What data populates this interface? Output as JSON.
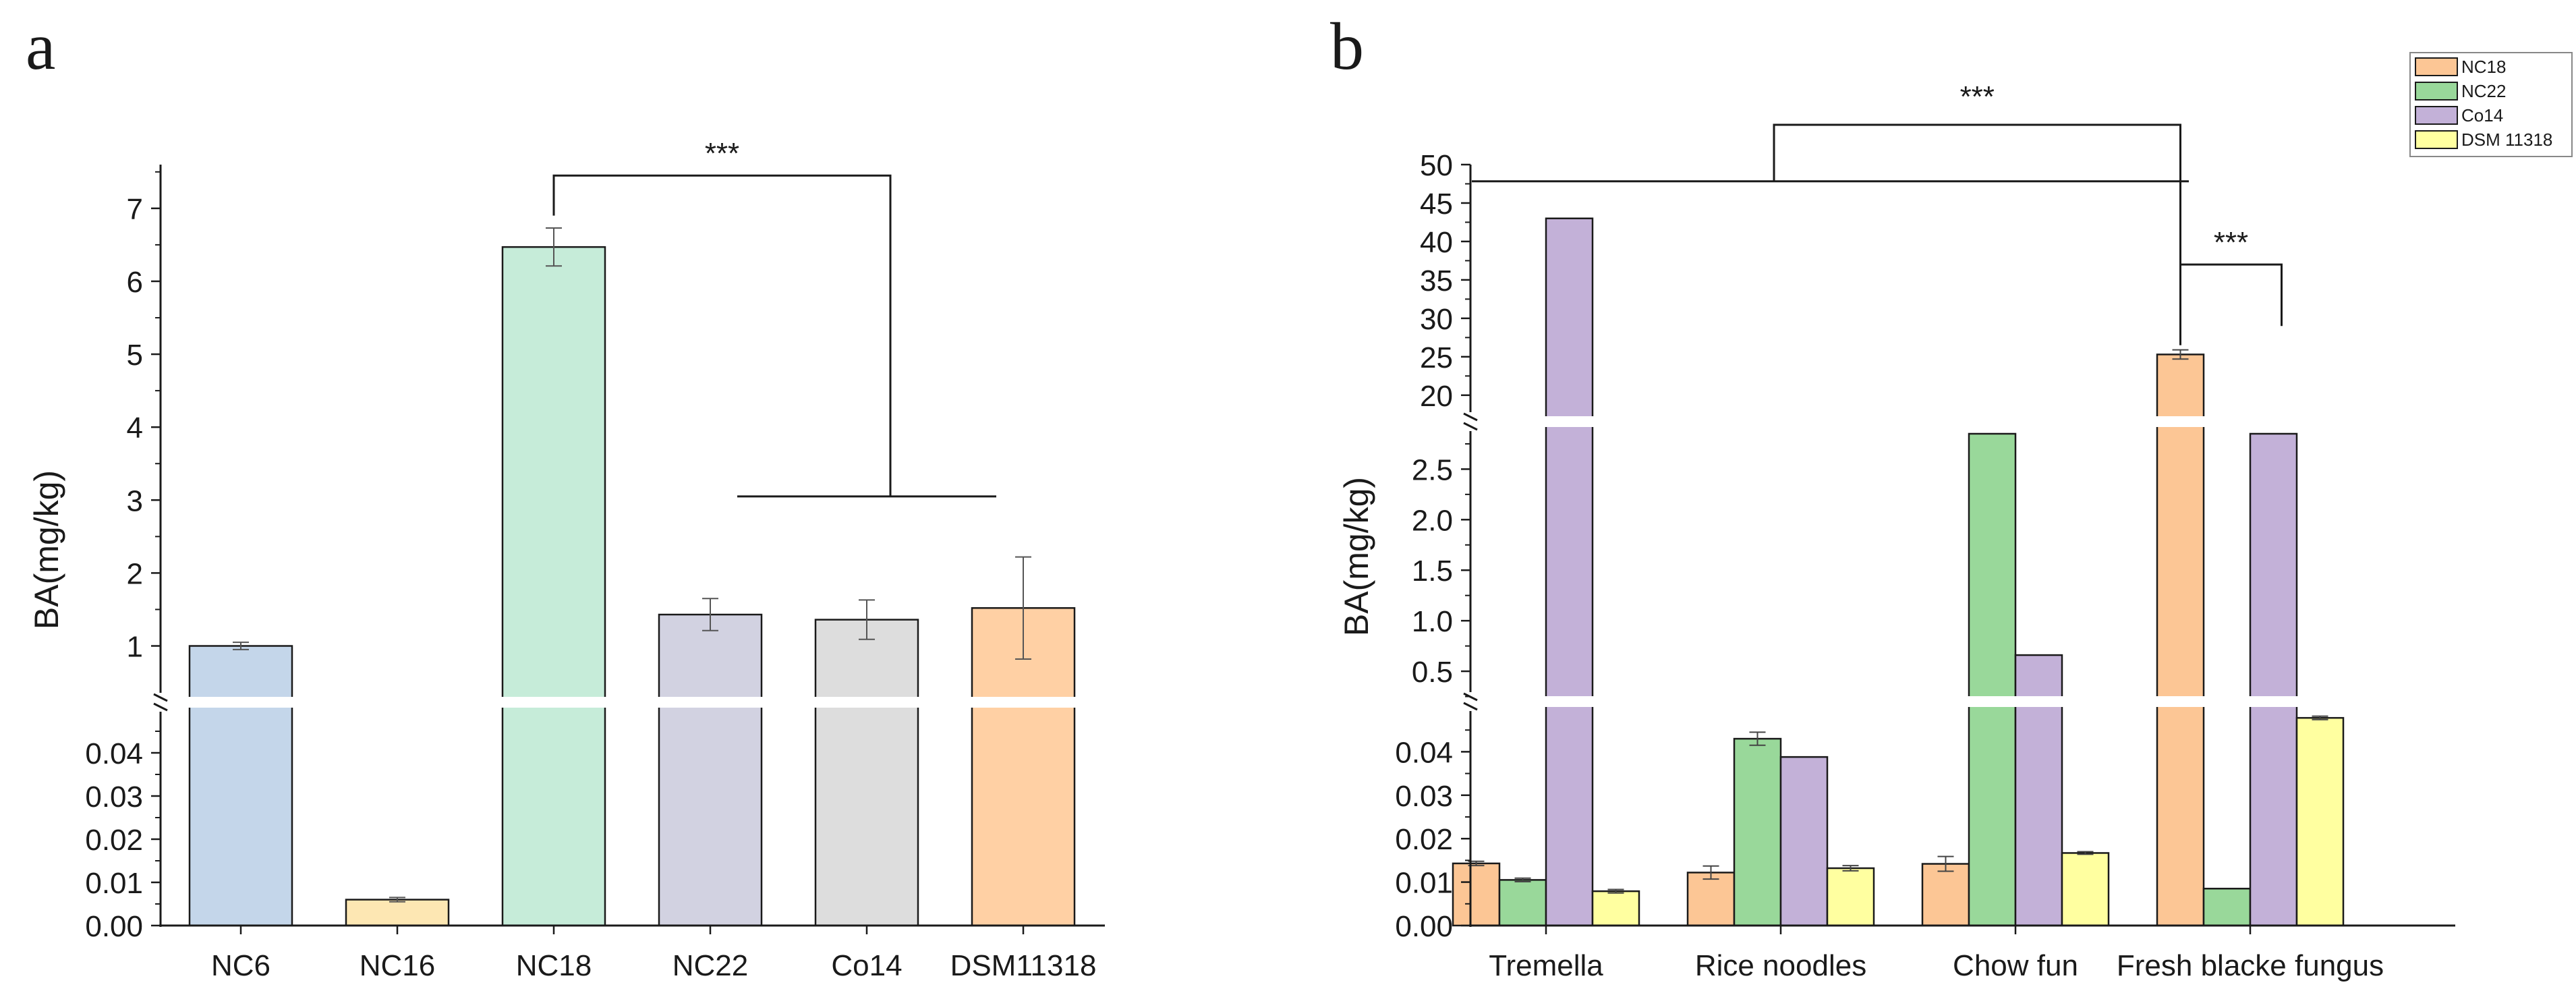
{
  "chart_data": [
    {
      "panel_label": "a",
      "type": "bar",
      "ylabel": "BA(mg/kg)",
      "categories": [
        "NC6",
        "NC16",
        "NC18",
        "NC22",
        "Co14",
        "DSM11318"
      ],
      "values": [
        1.0,
        0.006,
        6.47,
        1.43,
        1.36,
        1.52
      ],
      "errors": [
        0.05,
        0.0005,
        0.26,
        0.22,
        0.27,
        0.7
      ],
      "colors": [
        "#c4d6ea",
        "#fde7b3",
        "#c6ecd9",
        "#d2d2e1",
        "#dddddd",
        "#ffd0a4"
      ],
      "lower_segment": {
        "ylim": [
          0,
          0.05
        ],
        "ticks": [
          "0.00",
          "0.01",
          "0.02",
          "0.03",
          "0.04"
        ]
      },
      "upper_segment": {
        "ylim": [
          0.2,
          7.6
        ],
        "ticks": [
          "1",
          "2",
          "3",
          "4",
          "5",
          "6",
          "7"
        ]
      },
      "significance": [
        {
          "label": "***",
          "from": "NC18",
          "to_group": [
            "NC22",
            "Co14",
            "DSM11318"
          ],
          "bracket_top": 7.45,
          "group_line": 3.05
        }
      ]
    },
    {
      "panel_label": "b",
      "type": "bar",
      "ylabel": "BA(mg/kg)",
      "categories": [
        "Tremella",
        "Rice noodles",
        "Chow fun",
        "Fresh blacke fungus"
      ],
      "series": [
        {
          "name": "NC18",
          "color": "#fcc695",
          "values": [
            0.0143,
            0.0122,
            0.0142,
            25.3
          ],
          "errors": [
            0.0005,
            0.0015,
            0.0017,
            0.6
          ]
        },
        {
          "name": "NC22",
          "color": "#99d89a",
          "values": [
            0.0105,
            0.043,
            2.85,
            0.0085
          ],
          "errors": [
            0.0004,
            0.0015,
            0,
            0
          ]
        },
        {
          "name": "Co14",
          "color": "#c3b1d8",
          "values": [
            43.0,
            0.0388,
            0.66,
            2.85
          ],
          "errors": [
            0,
            0,
            0,
            0
          ]
        },
        {
          "name": "DSM 11318",
          "color": "#ffffa0",
          "values": [
            0.0079,
            0.0132,
            0.0167,
            0.0478
          ],
          "errors": [
            0.0004,
            0.0006,
            0.0003,
            0.0004
          ]
        }
      ],
      "lower_segment": {
        "ylim": [
          0,
          0.05
        ],
        "ticks": [
          "0.00",
          "0.01",
          "0.02",
          "0.03",
          "0.04"
        ]
      },
      "middle_segment": {
        "ylim": [
          0.2,
          2.95
        ],
        "ticks": [
          "0.5",
          "1.0",
          "1.5",
          "2.0",
          "2.5"
        ]
      },
      "upper_segment": {
        "ylim": [
          17,
          50
        ],
        "ticks": [
          "20",
          "25",
          "30",
          "35",
          "40",
          "45",
          "50"
        ]
      },
      "legend_position": "top-right",
      "significance": [
        {
          "label": "***",
          "from_group": [
            "Tremella",
            "Rice noodles",
            "Chow fun"
          ],
          "to": "Fresh blacke fungus NC18",
          "top": 55.0,
          "group_line": 48.0
        },
        {
          "label": "***",
          "from": "Fresh blacke fungus NC18",
          "to": "Fresh blacke fungus Co14",
          "top": 37.0
        }
      ]
    }
  ]
}
